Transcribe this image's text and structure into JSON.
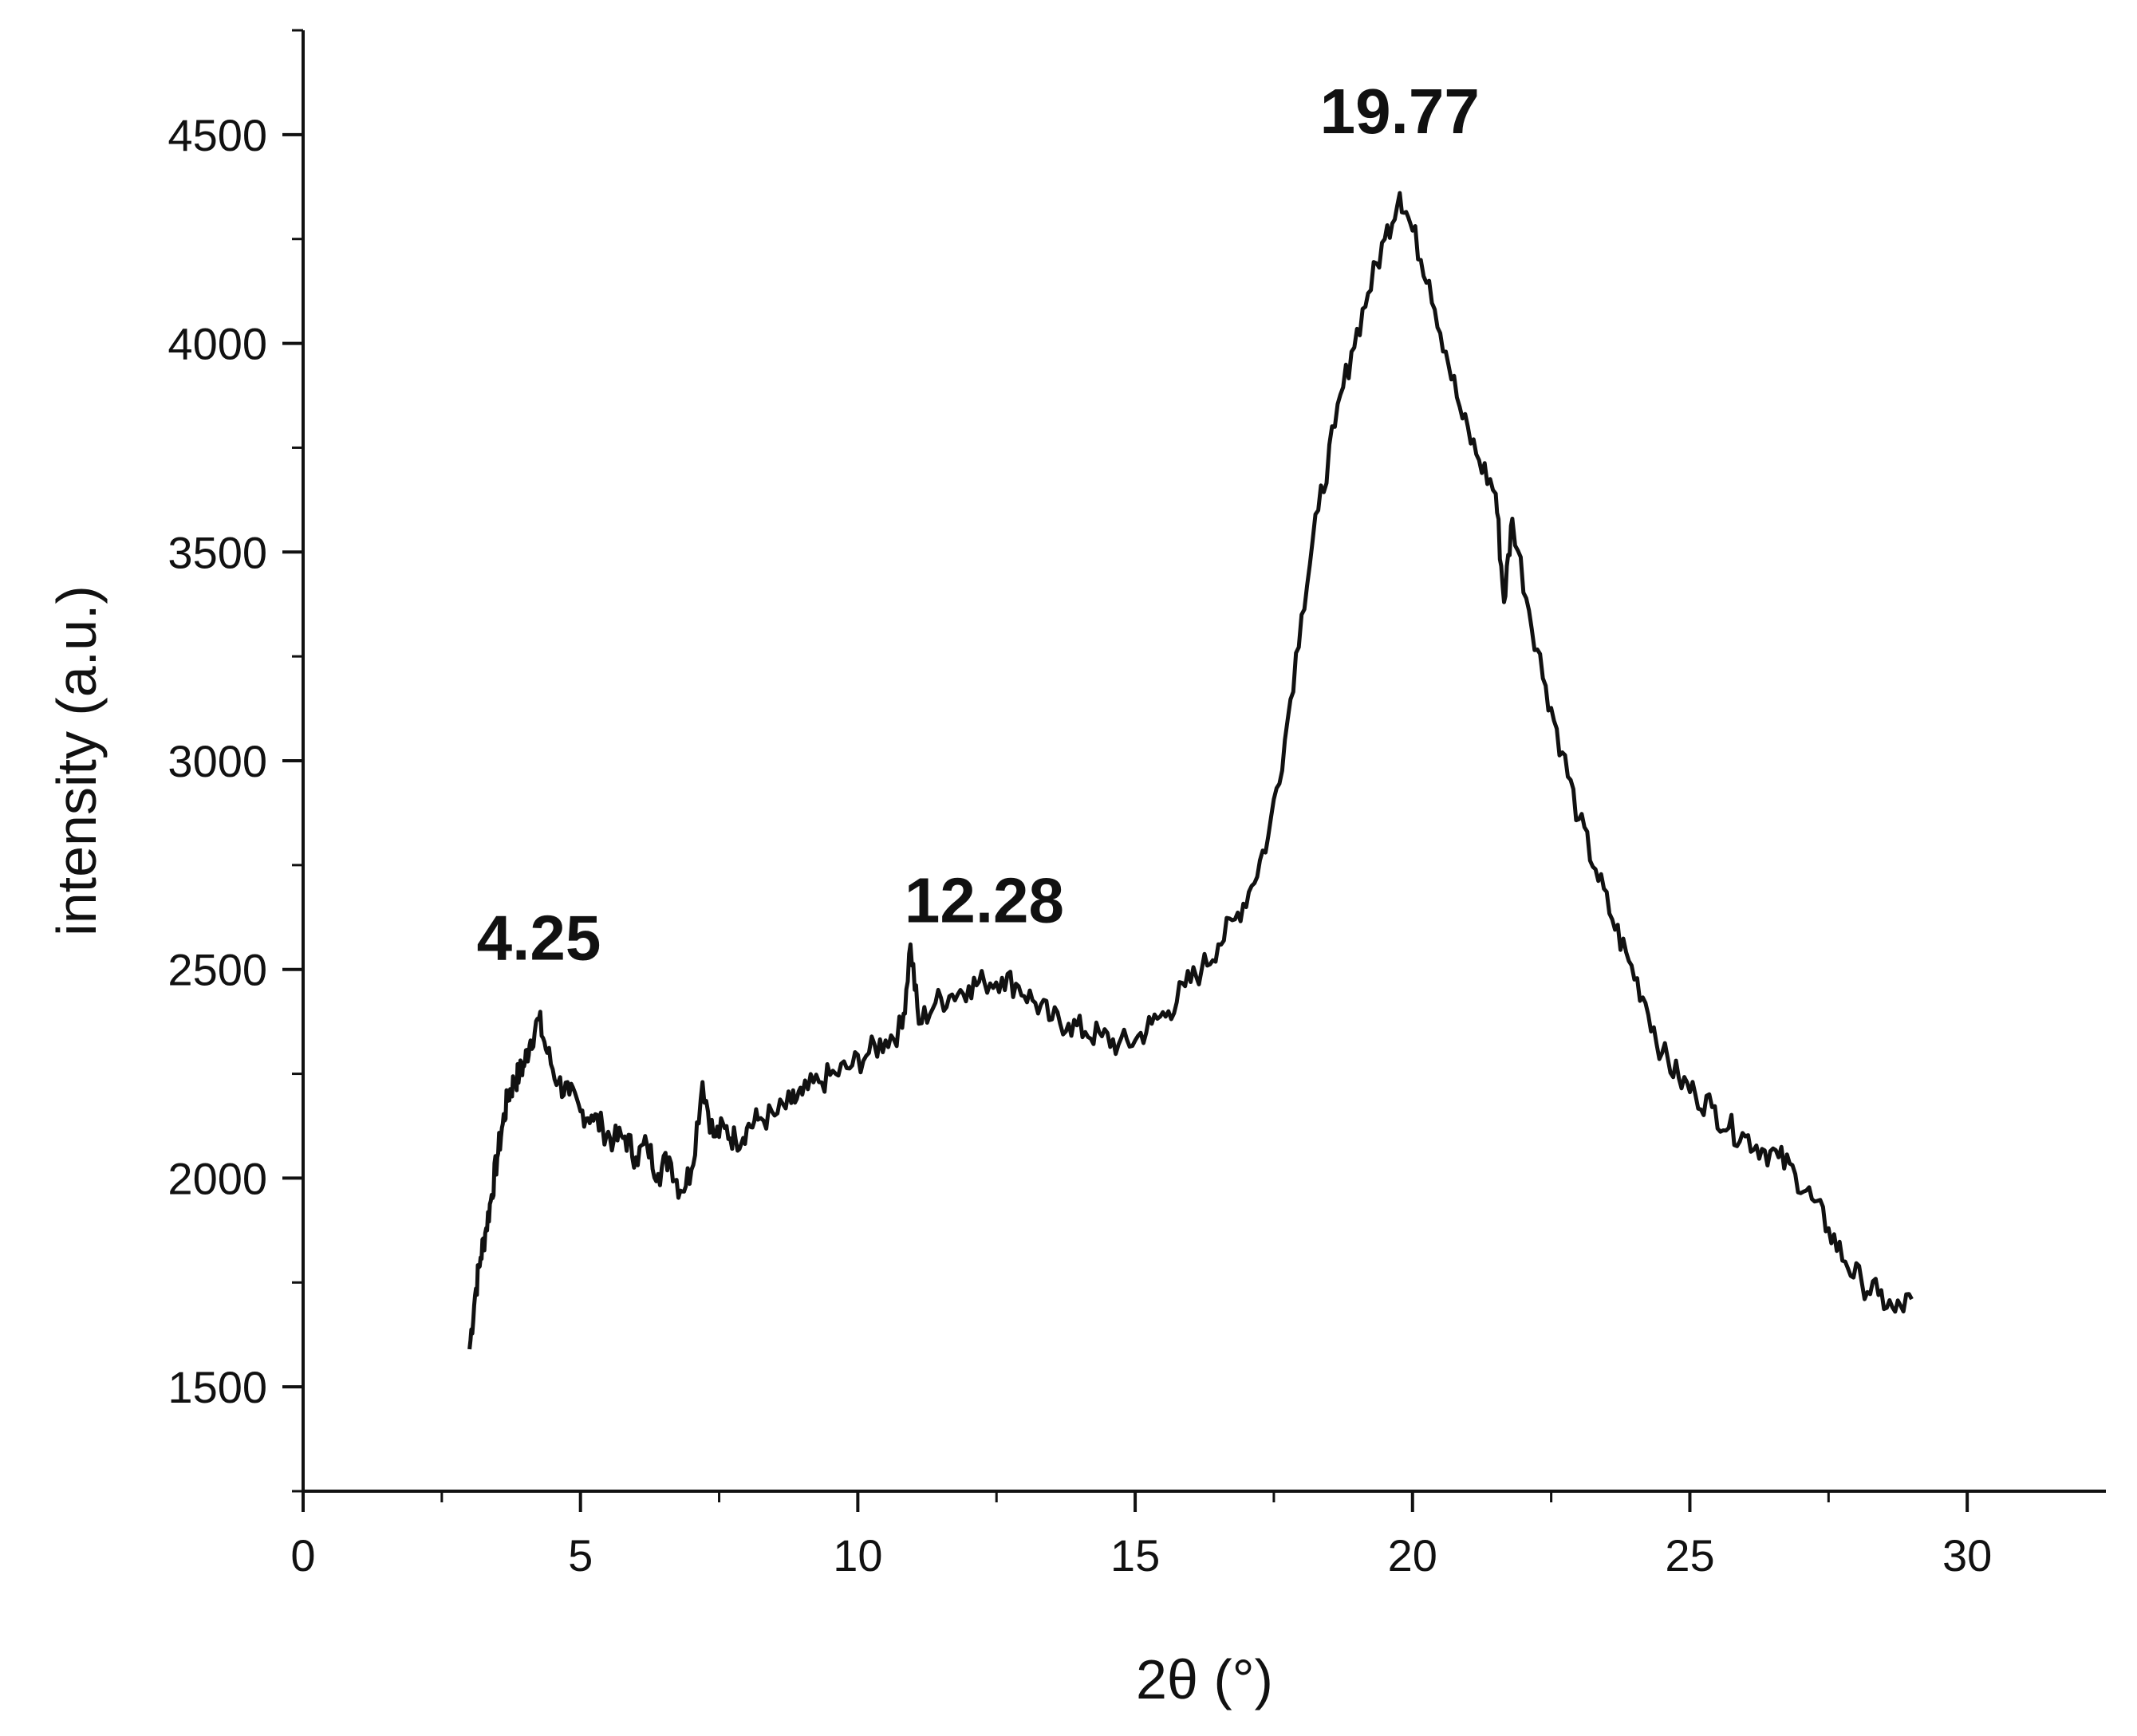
{
  "chart_data": {
    "type": "line",
    "title": "",
    "xlabel": "2θ (°)",
    "ylabel": "intensity (a.u.)",
    "xlim": [
      0,
      32.5
    ],
    "ylim": [
      1250,
      4750
    ],
    "xticks": [
      0,
      5,
      10,
      15,
      20,
      25,
      30
    ],
    "yticks": [
      1500,
      2000,
      2500,
      3000,
      3500,
      4000,
      4500
    ],
    "x_tick_labels": [
      "0",
      "5",
      "10",
      "15",
      "20",
      "25",
      "30"
    ],
    "y_tick_labels": [
      "1500",
      "2000",
      "2500",
      "3000",
      "3500",
      "4000",
      "4500"
    ],
    "grid": false,
    "legend": "none",
    "series_color": "#111111",
    "series": [
      {
        "x": [
          3.0,
          3.1,
          3.2,
          3.3,
          3.4,
          3.5,
          3.6,
          3.7,
          3.8,
          3.9,
          4.0,
          4.1,
          4.25,
          4.4,
          4.6,
          4.8,
          5.0,
          5.2,
          5.4,
          5.6,
          5.8,
          6.0,
          6.2,
          6.4,
          6.6,
          6.8,
          7.0,
          7.2,
          7.4,
          7.6,
          7.8,
          8.0,
          8.2,
          8.5,
          8.8,
          9.0,
          9.3,
          9.6,
          9.9,
          10.2,
          10.5,
          10.8,
          10.95,
          11.1,
          11.4,
          11.7,
          12.0,
          12.28,
          12.6,
          12.9,
          13.2,
          13.5,
          13.8,
          14.1,
          14.4,
          14.7,
          15.0,
          15.3,
          15.6,
          15.9,
          16.2,
          16.5,
          16.8,
          17.1,
          17.4,
          17.7,
          18.0,
          18.3,
          18.6,
          18.9,
          19.2,
          19.5,
          19.77,
          20.0,
          20.3,
          20.6,
          20.9,
          21.2,
          21.5,
          21.65,
          21.8,
          22.1,
          22.4,
          22.7,
          23.0,
          23.3,
          23.6,
          23.9,
          24.2,
          24.5,
          24.8,
          25.1,
          25.4,
          25.7,
          26.0,
          26.3,
          26.6,
          26.9,
          27.2,
          27.5,
          27.8,
          28.1,
          28.4,
          28.7,
          29.0
        ],
        "y": [
          1590,
          1720,
          1810,
          1880,
          1960,
          2050,
          2130,
          2200,
          2230,
          2250,
          2280,
          2330,
          2380,
          2300,
          2230,
          2200,
          2160,
          2150,
          2120,
          2090,
          2100,
          2050,
          2080,
          2010,
          2050,
          1970,
          2020,
          2230,
          2100,
          2120,
          2090,
          2120,
          2140,
          2150,
          2180,
          2200,
          2230,
          2250,
          2270,
          2300,
          2330,
          2360,
          2560,
          2370,
          2420,
          2440,
          2460,
          2470,
          2480,
          2460,
          2420,
          2380,
          2370,
          2350,
          2340,
          2320,
          2330,
          2370,
          2400,
          2460,
          2500,
          2560,
          2620,
          2700,
          2820,
          3050,
          3350,
          3600,
          3800,
          3980,
          4120,
          4250,
          4360,
          4270,
          4150,
          3980,
          3820,
          3720,
          3640,
          3380,
          3580,
          3360,
          3180,
          3020,
          2860,
          2740,
          2620,
          2520,
          2420,
          2300,
          2240,
          2200,
          2170,
          2120,
          2100,
          2070,
          2050,
          2010,
          1950,
          1880,
          1800,
          1750,
          1720,
          1680,
          1710
        ]
      }
    ],
    "annotations": [
      {
        "text": "4.25",
        "x": 4.25,
        "y": 2380
      },
      {
        "text": "12.28",
        "x": 12.28,
        "y": 2470
      },
      {
        "text": "19.77",
        "x": 19.77,
        "y": 4360
      }
    ]
  }
}
